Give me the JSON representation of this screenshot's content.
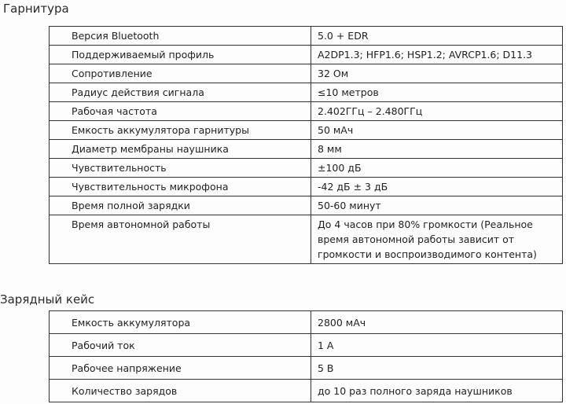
{
  "sections": [
    {
      "title": "Гарнитура",
      "rows": [
        {
          "label": "Версия Bluetooth",
          "value": "5.0 + EDR"
        },
        {
          "label": "Поддерживаемый профиль",
          "value": "A2DP1.3; HFP1.6; HSP1.2; AVRCP1.6; D11.3"
        },
        {
          "label": "Сопротивление",
          "value": "32 Ом"
        },
        {
          "label": "Радиус действия сигнала",
          "value": "≤10 метров"
        },
        {
          "label": "Рабочая частота",
          "value": "2.402ГГц – 2.480ГГц"
        },
        {
          "label": "Емкость аккумулятора гарнитуры",
          "value": "50 мАч"
        },
        {
          "label": "Диаметр мембраны наушника",
          "value": "8 мм"
        },
        {
          "label": "Чувствительность",
          "value": "±100 дБ"
        },
        {
          "label": "Чувствительность микрофона",
          "value": "-42 дБ ± 3 дБ"
        },
        {
          "label": "Время полной зарядки",
          "value": "50-60 минут"
        },
        {
          "label": "Время автономной работы",
          "value": "До 4 часов при 80% громкости (Реальное время автономной работы зависит от громкости и воспроизводимого контента)"
        }
      ]
    },
    {
      "title": "Зарядный кейс",
      "rows": [
        {
          "label": "Емкость аккумулятора",
          "value": "2800 мАч"
        },
        {
          "label": "Рабочий ток",
          "value": "1 А"
        },
        {
          "label": "Рабочее напряжение",
          "value": "5 В"
        },
        {
          "label": "Количество зарядов",
          "value": "до 10 раз полного заряда наушников"
        }
      ]
    }
  ]
}
